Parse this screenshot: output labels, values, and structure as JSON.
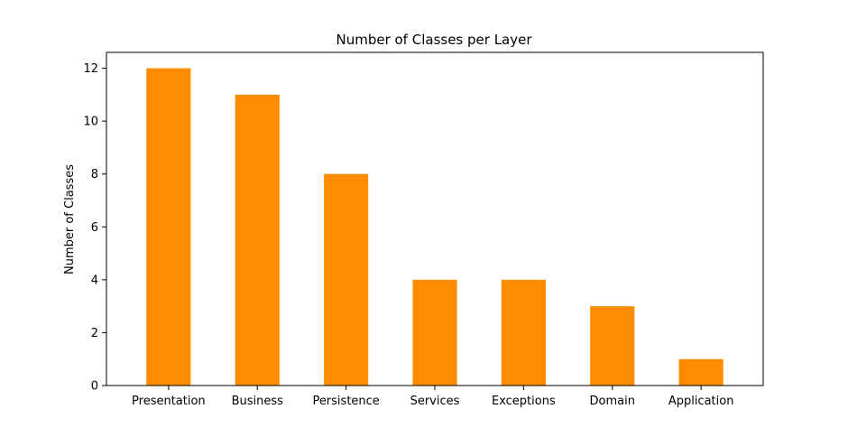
{
  "chart_data": {
    "type": "bar",
    "title": "Number of Classes per Layer",
    "xlabel": "",
    "ylabel": "Number of Classes",
    "categories": [
      "Presentation",
      "Business",
      "Persistence",
      "Services",
      "Exceptions",
      "Domain",
      "Application"
    ],
    "values": [
      12,
      11,
      8,
      4,
      4,
      3,
      1
    ],
    "yticks": [
      0,
      2,
      4,
      6,
      8,
      10,
      12
    ],
    "ylim": [
      0,
      12.6
    ],
    "bar_color": "#ff8c00",
    "grid": false,
    "legend": "none"
  }
}
